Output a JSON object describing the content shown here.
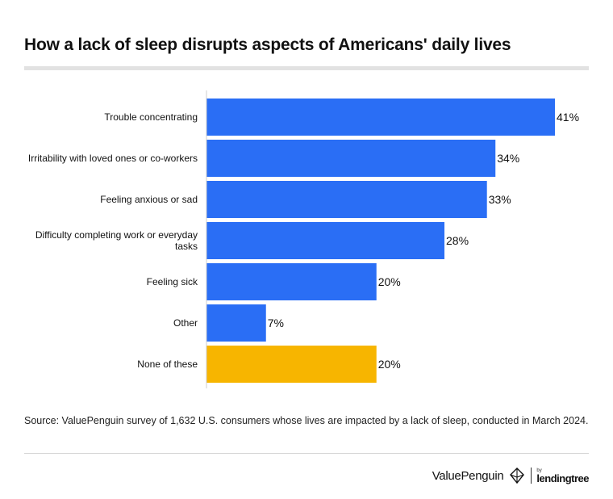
{
  "title": "How a lack of sleep disrupts aspects of Americans' daily lives",
  "source": "Source: ValuePenguin survey of 1,632 U.S. consumers whose lives are impacted by a lack of sleep, conducted in March 2024.",
  "footer": {
    "brand": "ValuePenguin",
    "partner_by": "by",
    "partner": "lendingtree",
    "brand_icon": "penguin-logo-icon"
  },
  "colors": {
    "bar": "#2a6ef5",
    "highlight": "#f7b500",
    "axis": "#cccccc"
  },
  "chart_data": {
    "type": "bar",
    "orientation": "horizontal",
    "title": "How a lack of sleep disrupts aspects of Americans' daily lives",
    "xlabel": "",
    "ylabel": "",
    "xlim": [
      0,
      41
    ],
    "grid": false,
    "legend": "none",
    "value_suffix": "%",
    "categories": [
      [
        "Trouble concentrating"
      ],
      [
        "Irritability with loved ones or co-workers"
      ],
      [
        "Feeling anxious or sad"
      ],
      [
        "Difficulty completing work or everyday",
        "tasks"
      ],
      [
        "Feeling sick"
      ],
      [
        "Other"
      ],
      [
        "None of these"
      ]
    ],
    "values": [
      41,
      34,
      33,
      28,
      20,
      7,
      20
    ],
    "labels": [
      "41%",
      "34%",
      "33%",
      "28%",
      "20%",
      "7%",
      "20%"
    ],
    "highlight_index": 6
  }
}
